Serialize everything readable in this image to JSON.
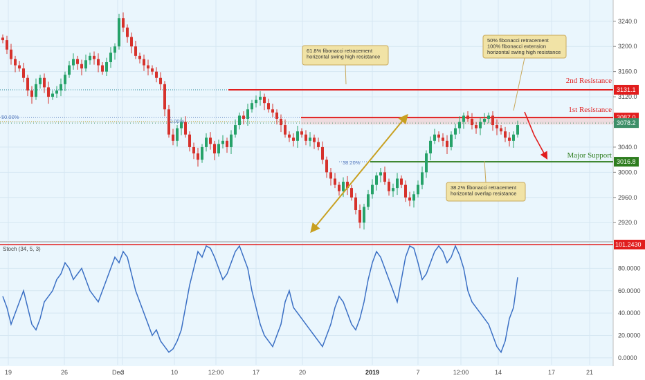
{
  "chart_data": [
    {
      "type": "candlestick",
      "title": "",
      "ylim": [
        2895,
        3265
      ],
      "y_ticks": [
        "3240.0",
        "3200.0",
        "3160.0",
        "3120.0",
        "3080.0",
        "3040.0",
        "3000.0",
        "2960.0",
        "2920.0"
      ],
      "x_ticks": [
        "19",
        "26",
        "Dec",
        "3",
        "10",
        "12:00",
        "17",
        "20",
        "2019",
        "7",
        "12:00",
        "14",
        "17",
        "21"
      ],
      "x_ticks_bold": [
        "2019"
      ],
      "price_tags": [
        {
          "text": "3131.1",
          "color": "#e11d1d"
        },
        {
          "text": "3087.0",
          "color": "#e11d1d"
        },
        {
          "text": "3078.2",
          "color": "#3d8f68"
        },
        {
          "text": "3016.8",
          "color": "#2e7d1e"
        }
      ],
      "levels": [
        {
          "name": "2nd Resistance",
          "value": 3131.1,
          "color": "#e11d1d"
        },
        {
          "name": "1st Resistance",
          "value": 3087.0,
          "color": "#e11d1d"
        },
        {
          "name": "Major Support",
          "value": 3016.8,
          "color": "#2e7d1e"
        }
      ],
      "fib_labels": [
        "50.00%",
        "0.00%",
        "38.20%"
      ],
      "annotations": [
        {
          "lines": [
            "61.8% fibonacci retracement",
            "horizontal swing high resistance"
          ]
        },
        {
          "lines": [
            "50% fibonacci retracement",
            "100% fibonacci extension",
            "horizontal swing high resistance"
          ]
        },
        {
          "lines": [
            "38.2% fibonacci retracement",
            "horizontal overlap resistance"
          ]
        }
      ],
      "series": [
        {
          "name": "price",
          "values": [
            3210,
            3195,
            3180,
            3170,
            3165,
            3150,
            3130,
            3120,
            3140,
            3150,
            3135,
            3120,
            3125,
            3130,
            3140,
            3155,
            3170,
            3180,
            3172,
            3165,
            3178,
            3185,
            3180,
            3170,
            3160,
            3175,
            3190,
            3200,
            3245,
            3230,
            3215,
            3200,
            3185,
            3180,
            3170,
            3165,
            3160,
            3150,
            3140,
            3100,
            3060,
            3050,
            3070,
            3080,
            3060,
            3040,
            3030,
            3020,
            3040,
            3055,
            3045,
            3030,
            3045,
            3050,
            3040,
            3060,
            3075,
            3090,
            3085,
            3100,
            3110,
            3115,
            3120,
            3110,
            3100,
            3095,
            3085,
            3075,
            3060,
            3055,
            3050,
            3065,
            3060,
            3050,
            3055,
            3048,
            3040,
            3020,
            3000,
            2990,
            2980,
            2970,
            2985,
            2975,
            2960,
            2940,
            2920,
            2945,
            2965,
            2980,
            2995,
            3000,
            2985,
            2970,
            2975,
            2990,
            2980,
            2960,
            2955,
            2965,
            2980,
            3000,
            3030,
            3050,
            3060,
            3055,
            3050,
            3040,
            3060,
            3070,
            3080,
            3090,
            3085,
            3075,
            3070,
            3080,
            3085,
            3090,
            3075,
            3070,
            3065,
            3055,
            3050,
            3060,
            3075
          ]
        },
        {
          "name": "Stoch (34, 5, 3)",
          "ylim": [
            -5,
            101.243
          ],
          "y_ticks": [
            "80.0000",
            "60.0000",
            "40.0000",
            "20.0000",
            "0.0000"
          ],
          "upper_line": "101.2430",
          "values": [
            55,
            45,
            30,
            40,
            50,
            60,
            45,
            30,
            25,
            35,
            50,
            55,
            60,
            70,
            75,
            85,
            80,
            70,
            75,
            80,
            70,
            60,
            55,
            50,
            60,
            70,
            80,
            90,
            85,
            95,
            90,
            75,
            60,
            50,
            40,
            30,
            20,
            25,
            15,
            10,
            5,
            8,
            15,
            25,
            45,
            65,
            80,
            95,
            90,
            100,
            98,
            90,
            80,
            70,
            75,
            85,
            95,
            100,
            90,
            80,
            60,
            45,
            30,
            20,
            15,
            10,
            20,
            30,
            50,
            60,
            45,
            40,
            35,
            30,
            25,
            20,
            15,
            10,
            20,
            30,
            45,
            55,
            50,
            40,
            30,
            25,
            35,
            50,
            70,
            85,
            95,
            90,
            80,
            70,
            60,
            50,
            70,
            90,
            100,
            98,
            85,
            70,
            75,
            85,
            95,
            100,
            95,
            85,
            90,
            100,
            92,
            80,
            60,
            50,
            45,
            40,
            35,
            30,
            20,
            10,
            5,
            15,
            35,
            45,
            72
          ]
        }
      ]
    }
  ]
}
